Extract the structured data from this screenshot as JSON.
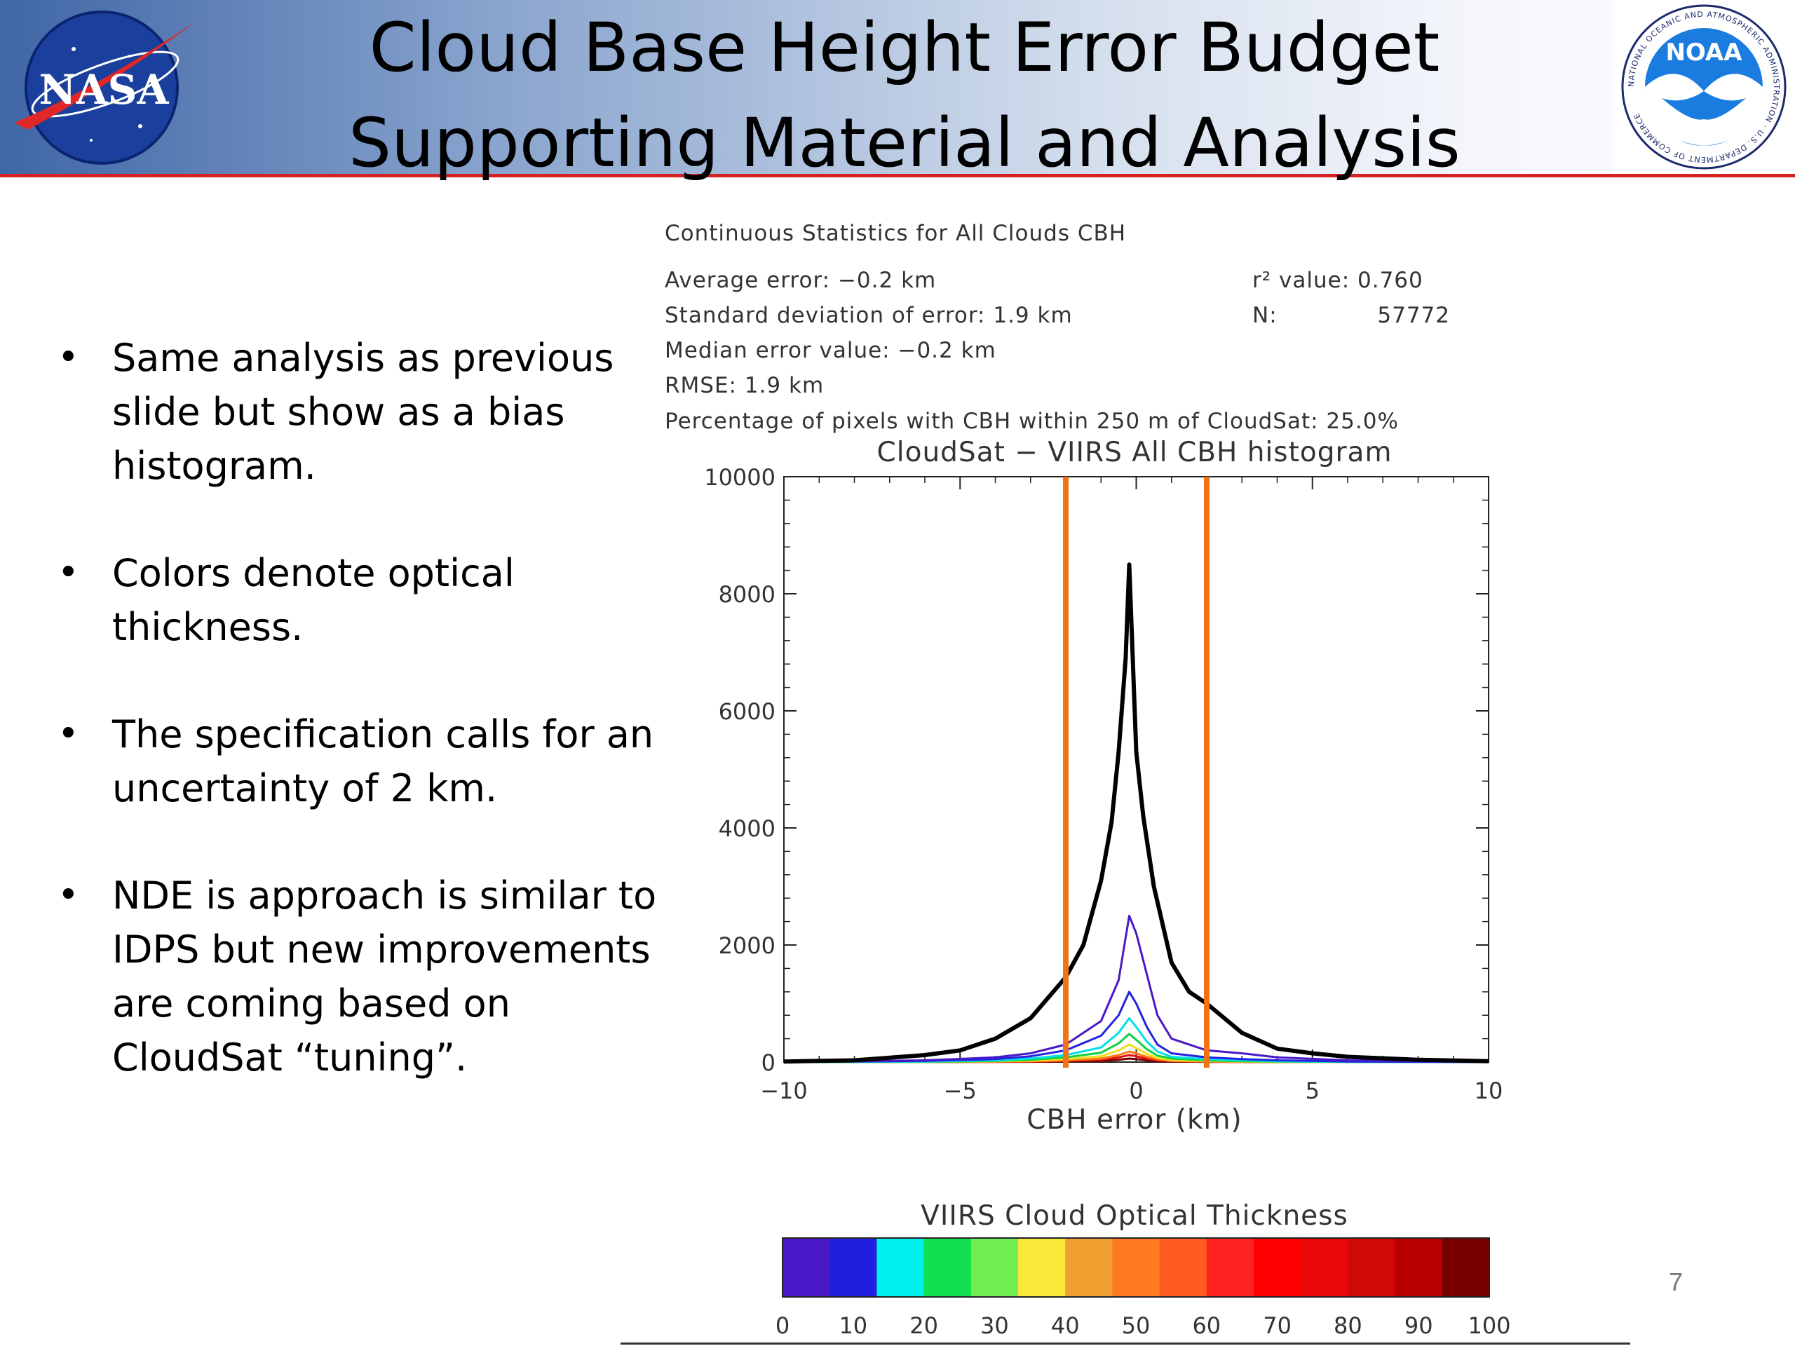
{
  "header": {
    "title_line1": "Cloud Base Height Error Budget",
    "title_line2": "Supporting Material and Analysis",
    "nasa_logo_text": "NASA",
    "noaa_logo_text": "NOAA",
    "noaa_ring_text": "NATIONAL OCEANIC AND ATMOSPHERIC ADMINISTRATION · U.S. DEPARTMENT OF COMMERCE"
  },
  "bullets": [
    "Same analysis as previous slide but show as a bias histogram.",
    "Colors denote optical thickness.",
    "The specification calls for an uncertainty of 2 km.",
    "NDE is approach is similar to IDPS but new improvements are coming based on CloudSat “tuning”."
  ],
  "stats": {
    "heading": "Continuous Statistics for All Clouds CBH",
    "avg_error": "Average error: −0.2 km",
    "std_dev": "Standard deviation of error:  1.9 km",
    "median": "Median error value: −0.2 km",
    "rmse": "RMSE:   1.9 km",
    "pct_within": "Percentage of pixels with CBH within 250 m of CloudSat: 25.0%",
    "r2_label": "r² value: 0.760",
    "n_label": "N:",
    "n_value": "57772"
  },
  "chart_data": {
    "type": "line",
    "title": "CloudSat − VIIRS All CBH histogram",
    "xlabel": "CBH error (km)",
    "ylabel": "",
    "xlim": [
      -10,
      10
    ],
    "ylim": [
      0,
      10000
    ],
    "x_ticks": [
      -10,
      -5,
      0,
      5,
      10
    ],
    "x_tick_labels": [
      "−10",
      "−5",
      "0",
      "5",
      "10"
    ],
    "y_ticks": [
      0,
      2000,
      4000,
      6000,
      8000,
      10000
    ],
    "y_tick_labels": [
      "0",
      "2000",
      "4000",
      "6000",
      "8000",
      "10000"
    ],
    "vertical_lines": [
      -2,
      2
    ],
    "vertical_line_color": "#f07318",
    "series": [
      {
        "color": "#000000",
        "x": [
          -10,
          -8,
          -6,
          -5,
          -4,
          -3,
          -2,
          -1.5,
          -1,
          -0.7,
          -0.5,
          -0.3,
          -0.2,
          -0.1,
          0,
          0.2,
          0.5,
          1,
          1.5,
          2,
          3,
          4,
          5,
          6,
          8,
          10
        ],
        "y": [
          10,
          30,
          120,
          200,
          400,
          750,
          1450,
          2000,
          3100,
          4100,
          5300,
          6900,
          8500,
          6900,
          5300,
          4200,
          3000,
          1700,
          1200,
          1000,
          500,
          230,
          150,
          90,
          40,
          15
        ]
      },
      {
        "color": "#4b18c8",
        "x": [
          -10,
          -6,
          -4,
          -3,
          -2,
          -1,
          -0.5,
          -0.2,
          0,
          0.3,
          0.6,
          1,
          2,
          3,
          4,
          6,
          10
        ],
        "y": [
          0,
          30,
          80,
          150,
          300,
          700,
          1400,
          2500,
          2200,
          1500,
          800,
          400,
          200,
          150,
          80,
          30,
          0
        ]
      },
      {
        "color": "#2222e0",
        "x": [
          -10,
          -6,
          -4,
          -3,
          -2,
          -1,
          -0.5,
          -0.2,
          0,
          0.3,
          0.6,
          1,
          2,
          3,
          4,
          6,
          10
        ],
        "y": [
          0,
          20,
          50,
          100,
          200,
          450,
          800,
          1200,
          1000,
          600,
          300,
          150,
          80,
          50,
          30,
          10,
          0
        ]
      },
      {
        "color": "#00e0e8",
        "x": [
          -10,
          -6,
          -4,
          -3,
          -2,
          -1,
          -0.5,
          -0.2,
          0,
          0.3,
          0.6,
          1,
          2,
          3,
          4,
          6,
          10
        ],
        "y": [
          0,
          10,
          30,
          60,
          120,
          250,
          500,
          750,
          600,
          350,
          180,
          90,
          50,
          30,
          15,
          5,
          0
        ]
      },
      {
        "color": "#10d040",
        "x": [
          -10,
          -6,
          -4,
          -3,
          -2,
          -1,
          -0.5,
          -0.2,
          0,
          0.3,
          0.6,
          1,
          2,
          3,
          4,
          6,
          10
        ],
        "y": [
          0,
          5,
          20,
          40,
          80,
          160,
          320,
          480,
          380,
          220,
          110,
          60,
          30,
          15,
          8,
          3,
          0
        ]
      },
      {
        "color": "#f0e020",
        "x": [
          -10,
          -6,
          -4,
          -3,
          -2,
          -1,
          -0.5,
          -0.2,
          0,
          0.3,
          0.6,
          1,
          2,
          3,
          4,
          6,
          10
        ],
        "y": [
          0,
          3,
          12,
          25,
          50,
          100,
          200,
          300,
          240,
          140,
          70,
          35,
          18,
          9,
          5,
          2,
          0
        ]
      },
      {
        "color": "#ff7a10",
        "x": [
          -10,
          -6,
          -4,
          -3,
          -2,
          -1,
          -0.5,
          -0.2,
          0,
          0.3,
          0.6,
          1,
          2,
          3,
          4,
          6,
          10
        ],
        "y": [
          0,
          2,
          8,
          15,
          30,
          60,
          120,
          180,
          150,
          90,
          45,
          22,
          11,
          6,
          3,
          1,
          0
        ]
      },
      {
        "color": "#e01010",
        "x": [
          -10,
          -6,
          -4,
          -3,
          -2,
          -1,
          -0.5,
          -0.2,
          0,
          0.3,
          0.6,
          1,
          2,
          3,
          4,
          6,
          10
        ],
        "y": [
          0,
          1,
          5,
          10,
          20,
          40,
          80,
          120,
          100,
          60,
          30,
          15,
          8,
          4,
          2,
          1,
          0
        ]
      },
      {
        "color": "#7a0000",
        "x": [
          -10,
          -6,
          -4,
          -3,
          -2,
          -1,
          -0.5,
          -0.2,
          0,
          0.3,
          0.6,
          1,
          2,
          3,
          4,
          6,
          10
        ],
        "y": [
          0,
          1,
          3,
          5,
          10,
          20,
          40,
          60,
          50,
          30,
          15,
          8,
          4,
          2,
          1,
          0,
          0
        ]
      }
    ]
  },
  "colorbar": {
    "title": "VIIRS Cloud Optical Thickness",
    "tick_labels": [
      "0",
      "10",
      "20",
      "30",
      "40",
      "50",
      "60",
      "70",
      "80",
      "90",
      "100"
    ],
    "colors": [
      "#4b18c8",
      "#1f1fe0",
      "#00f0f0",
      "#10e050",
      "#70f050",
      "#f8e838",
      "#f0a030",
      "#ff7a20",
      "#ff5a20",
      "#ff2020",
      "#ff0000",
      "#e80808",
      "#d00808",
      "#b80000",
      "#7a0000"
    ]
  },
  "page_number": "7"
}
